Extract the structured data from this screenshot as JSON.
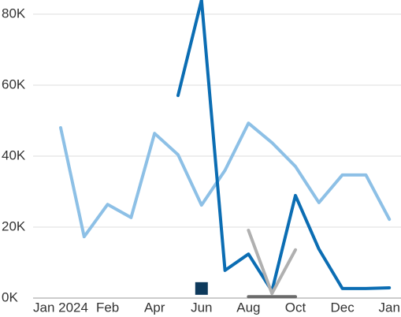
{
  "chart_data": {
    "type": "line",
    "categories": [
      "Jan 2024",
      null,
      "Feb",
      null,
      "Apr",
      null,
      "Jun",
      null,
      "Aug",
      null,
      "Oct",
      null,
      "Dec",
      null,
      "Jan"
    ],
    "ylim": [
      0,
      84000
    ],
    "yticks": [
      {
        "value": 0,
        "label": "0K"
      },
      {
        "value": 20000,
        "label": "20K"
      },
      {
        "value": 40000,
        "label": "40K"
      },
      {
        "value": 60000,
        "label": "60K"
      },
      {
        "value": 80000,
        "label": "80K"
      }
    ],
    "grid": true,
    "series": [
      {
        "color": "#8dc0e6",
        "values": [
          48000,
          17300,
          26400,
          22700,
          46400,
          40400,
          26200,
          36000,
          49300,
          43800,
          37100,
          26900,
          34700,
          34700,
          22200
        ]
      },
      {
        "color": "#0b6db3",
        "values": [
          null,
          null,
          null,
          null,
          null,
          57100,
          84000,
          7800,
          12400,
          2000,
          28900,
          13800,
          2700,
          2700,
          2900
        ]
      },
      {
        "color": "#b0b0b0",
        "values": [
          null,
          null,
          null,
          null,
          null,
          null,
          null,
          null,
          19100,
          1300,
          13600,
          null,
          null,
          null,
          null
        ]
      },
      {
        "color": "#6b6b6b",
        "values": [
          null,
          null,
          null,
          null,
          null,
          null,
          null,
          null,
          400,
          400,
          400,
          null,
          null,
          null,
          null
        ]
      },
      {
        "color": "#0e3a5c",
        "marker": "square",
        "values": [
          null,
          null,
          null,
          null,
          null,
          null,
          2700,
          null,
          null,
          null,
          null,
          null,
          null,
          null,
          null
        ]
      }
    ]
  }
}
